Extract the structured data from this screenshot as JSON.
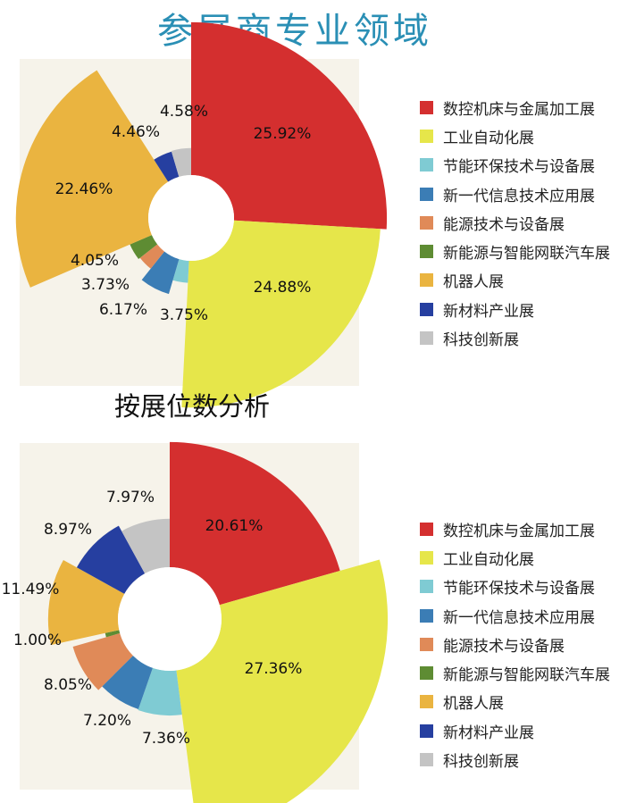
{
  "title": "参展商专业领域",
  "colors": [
    "#d42f2f",
    "#e6e64a",
    "#7fcbd3",
    "#3b7db5",
    "#e08a58",
    "#5e8c33",
    "#eab440",
    "#263fa0",
    "#c4c4c4"
  ],
  "legend": [
    "数控机床与金属加工展",
    "工业自动化展",
    "节能环保技术与设备展",
    "新一代信息技术应用展",
    "能源技术与设备展",
    "新能源与智能网联汽车展",
    "机器人展",
    "新材料产业展",
    "科技创新展"
  ],
  "chart_data": [
    {
      "type": "pie",
      "title": "",
      "categories": [
        "数控机床与金属加工展",
        "工业自动化展",
        "节能环保技术与设备展",
        "新一代信息技术应用展",
        "能源技术与设备展",
        "新能源与智能网联汽车展",
        "机器人展",
        "新材料产业展",
        "科技创新展"
      ],
      "values": [
        25.92,
        24.88,
        3.75,
        6.17,
        3.73,
        4.05,
        22.46,
        4.46,
        4.58
      ],
      "labels": [
        "25.92%",
        "24.88%",
        "3.75%",
        "6.17%",
        "3.73%",
        "4.05%",
        "22.46%",
        "4.46%",
        "4.58%"
      ],
      "legend_position": "right"
    },
    {
      "type": "pie",
      "title": "按展位数分析",
      "categories": [
        "数控机床与金属加工展",
        "工业自动化展",
        "节能环保技术与设备展",
        "新一代信息技术应用展",
        "能源技术与设备展",
        "新能源与智能网联汽车展",
        "机器人展",
        "新材料产业展",
        "科技创新展"
      ],
      "values": [
        20.61,
        27.36,
        7.36,
        7.2,
        8.05,
        1.0,
        11.49,
        8.97,
        7.97
      ],
      "labels": [
        "20.61%",
        "27.36%",
        "7.36%",
        "7.20%",
        "8.05%",
        "1.00%",
        "11.49%",
        "8.97%",
        "7.97%"
      ],
      "legend_position": "right"
    }
  ]
}
